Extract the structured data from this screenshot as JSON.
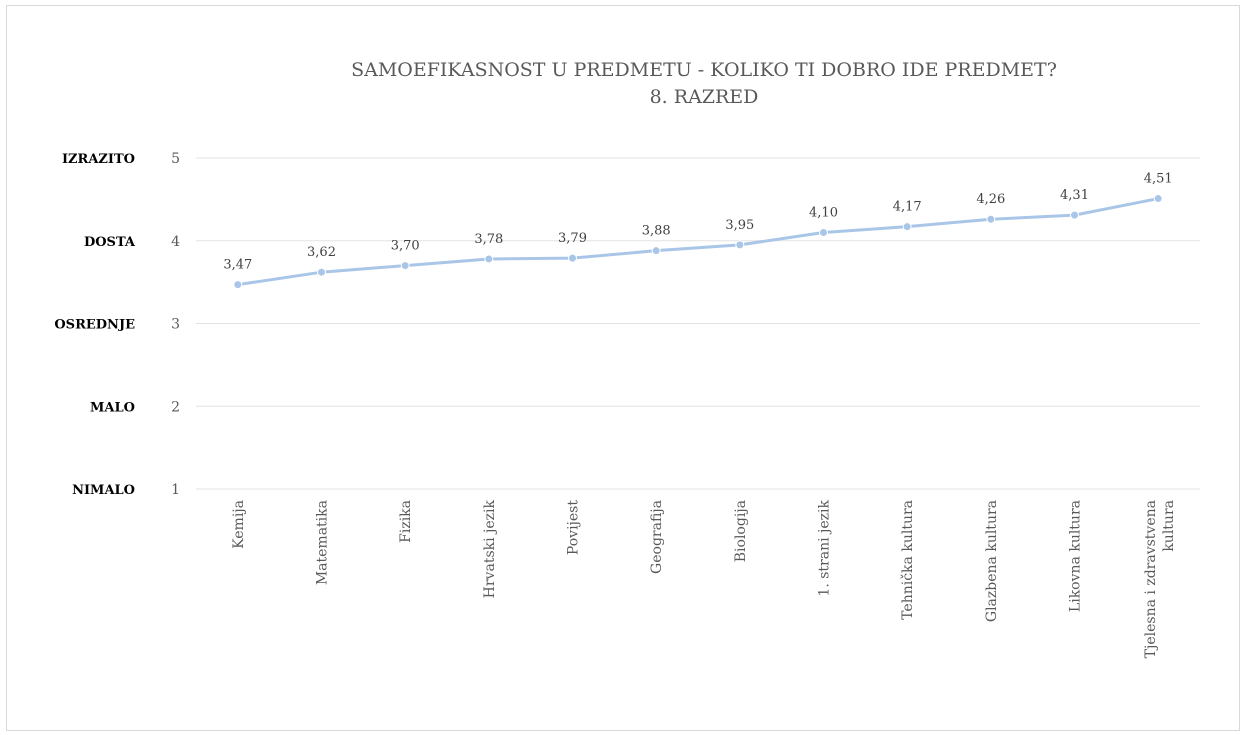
{
  "chart_data": {
    "type": "line",
    "title": [
      "SAMOEFIKASNOST U PREDMETU - KOLIKO TI DOBRO IDE PREDMET?",
      "8. RAZRED"
    ],
    "categories": [
      "Kemija",
      "Matematika",
      "Fizika",
      "Hrvatski jezik",
      "Povijest",
      "Geografija",
      "Biologija",
      "1. strani jezik",
      "Tehnička kultura",
      "Glazbena kultura",
      "Likovna kultura",
      "Tjelesna i zdravstvena kultura"
    ],
    "series": [
      {
        "values": [
          3.47,
          3.62,
          3.7,
          3.78,
          3.79,
          3.88,
          3.95,
          4.1,
          4.17,
          4.26,
          4.31,
          4.51
        ]
      }
    ],
    "data_labels": [
      "3,47",
      "3,62",
      "3,70",
      "3,78",
      "3,79",
      "3,88",
      "3,95",
      "4,10",
      "4,17",
      "4,26",
      "4,31",
      "4,51"
    ],
    "ylim": [
      1,
      5
    ],
    "yticks": [
      1,
      2,
      3,
      4,
      5
    ],
    "ytick_labels": [
      "1",
      "2",
      "3",
      "4",
      "5"
    ],
    "ylevel_labels": [
      "NIMALO",
      "MALO",
      "OSREDNJE",
      "DOSTA",
      "IZRAZITO"
    ],
    "grid": true,
    "colors": {
      "line": "#a9c6e8",
      "marker": "#a9c6e8",
      "grid": "#e3e3e3"
    }
  }
}
